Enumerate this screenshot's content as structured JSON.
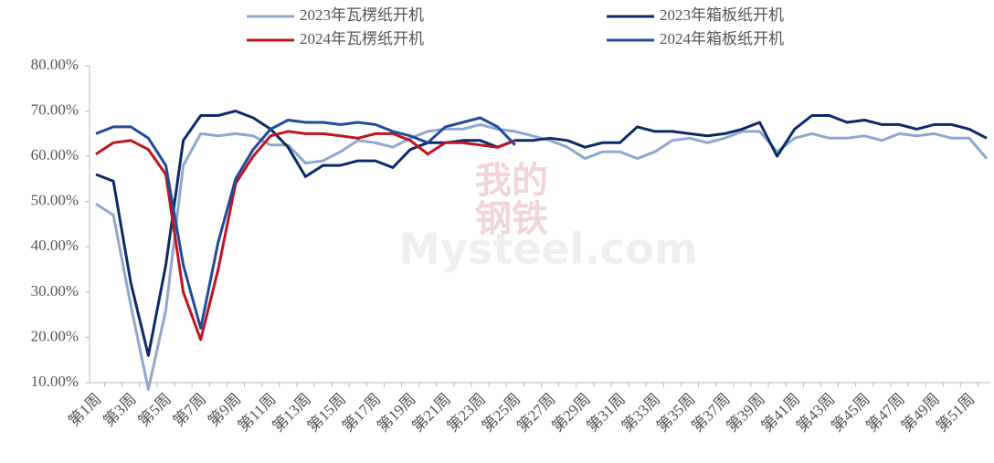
{
  "chart_data": {
    "type": "line",
    "watermark": [
      "我的",
      "钢铁",
      "Mysteel.com"
    ],
    "categories": [
      "第1周",
      null,
      "第3周",
      null,
      "第5周",
      null,
      "第7周",
      null,
      "第9周",
      null,
      "第11周",
      null,
      "第13周",
      null,
      "第15周",
      null,
      "第17周",
      null,
      "第19周",
      null,
      "第21周",
      null,
      "第23周",
      null,
      "第25周",
      null,
      "第27周",
      null,
      "第29周",
      null,
      "第31周",
      null,
      "第33周",
      null,
      "第35周",
      null,
      "第37周",
      null,
      "第39周",
      null,
      "第41周",
      null,
      "第43周",
      null,
      "第45周",
      null,
      "第47周",
      null,
      "第49周",
      null,
      "第51周",
      null
    ],
    "series": [
      {
        "name": "2023年瓦楞纸开机",
        "color": "#8fa7cf",
        "values": [
          49.5,
          47,
          27,
          8.5,
          26,
          58,
          65,
          64.5,
          65,
          64.5,
          62.5,
          62.5,
          58.5,
          59,
          61,
          63.5,
          63,
          62,
          64,
          65.5,
          66,
          66,
          67,
          66,
          65.5,
          64.5,
          63.5,
          62,
          59.5,
          61,
          61,
          59.5,
          61,
          63.5,
          64,
          63,
          64,
          65.5,
          65.5,
          61,
          64,
          65,
          64,
          64,
          64.5,
          63.5,
          65,
          64.5,
          65,
          64,
          64,
          59.5
        ]
      },
      {
        "name": "2023年箱板纸开机",
        "color": "#0c2a66",
        "values": [
          56,
          54.5,
          32,
          16,
          36,
          63.5,
          69,
          69,
          70,
          68.5,
          66,
          62,
          55.5,
          58,
          58,
          59,
          59,
          57.5,
          61.5,
          63,
          63,
          63.5,
          63.5,
          62,
          63.5,
          63.5,
          64,
          63.5,
          62,
          63,
          63,
          66.5,
          65.5,
          65.5,
          65,
          64.5,
          65,
          66,
          67.5,
          60,
          66,
          69,
          69,
          67.5,
          68,
          67,
          67,
          66,
          67,
          67,
          66,
          64
        ]
      },
      {
        "name": "2024年瓦楞纸开机",
        "color": "#c0141e",
        "values": [
          60.5,
          63,
          63.5,
          61.5,
          56,
          30,
          19.5,
          35,
          54,
          60,
          64.5,
          65.5,
          65,
          65,
          64.5,
          64,
          65,
          65,
          63.5,
          60.5,
          63,
          63,
          62.5,
          62,
          63.5,
          null,
          null,
          null,
          null,
          null,
          null,
          null,
          null,
          null,
          null,
          null,
          null,
          null,
          null,
          null,
          null,
          null,
          null,
          null,
          null,
          null,
          null,
          null,
          null,
          null,
          null,
          null
        ]
      },
      {
        "name": "2024年箱板纸开机",
        "color": "#1f4b9a",
        "values": [
          65,
          66.5,
          66.5,
          64,
          58,
          36,
          22,
          41,
          55,
          61.5,
          66,
          68,
          67.5,
          67.5,
          67,
          67.5,
          67,
          65.5,
          64.5,
          63,
          66.5,
          67.5,
          68.5,
          66.5,
          62.5,
          null,
          null,
          null,
          null,
          null,
          null,
          null,
          null,
          null,
          null,
          null,
          null,
          null,
          null,
          null,
          null,
          null,
          null,
          null,
          null,
          null,
          null,
          null,
          null,
          null,
          null,
          null
        ]
      }
    ],
    "ylim": [
      10,
      80
    ],
    "yticks": [
      {
        "value": 10,
        "label": "10.00%"
      },
      {
        "value": 20,
        "label": "20.00%"
      },
      {
        "value": 30,
        "label": "30.00%"
      },
      {
        "value": 40,
        "label": "40.00%"
      },
      {
        "value": 50,
        "label": "50.00%"
      },
      {
        "value": 60,
        "label": "60.00%"
      },
      {
        "value": 70,
        "label": "70.00%"
      },
      {
        "value": 80,
        "label": "80.00%"
      }
    ],
    "grid": false,
    "legend": "top"
  }
}
